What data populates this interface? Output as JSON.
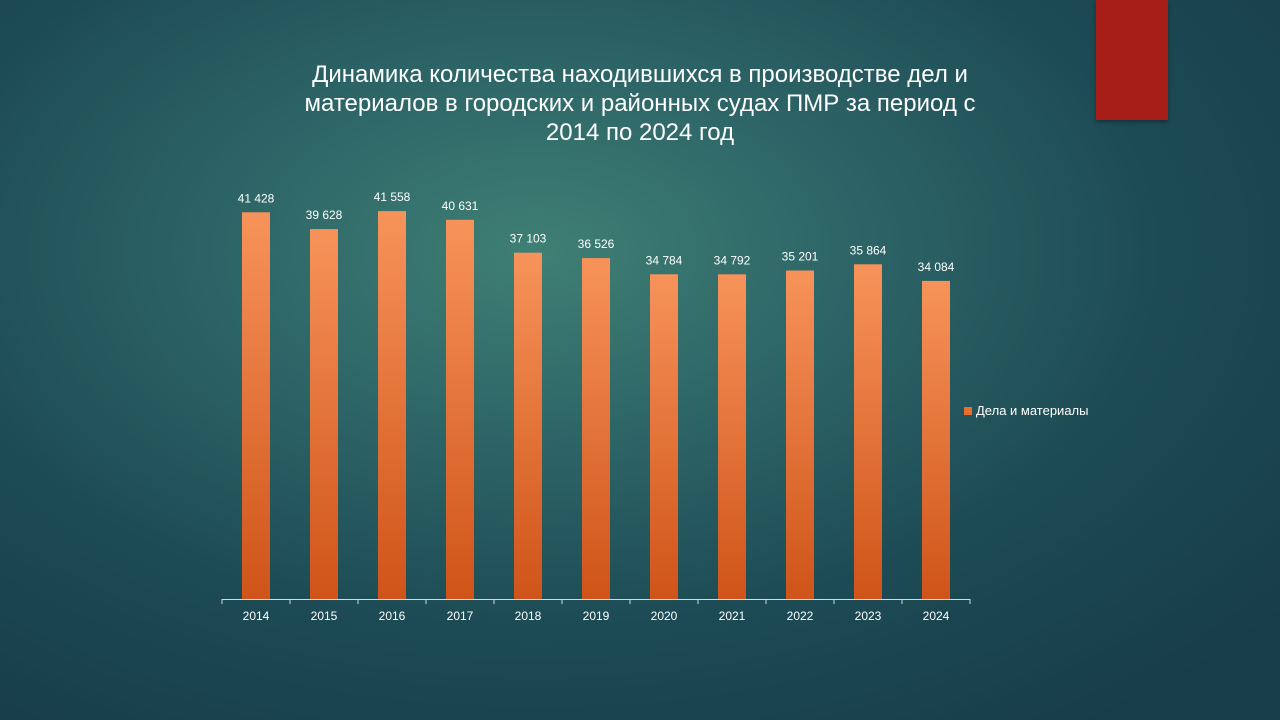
{
  "slide": {
    "title_lines": [
      "Динамика количества находившихся в производстве дел и",
      "материалов в городских и районных судах ПМР за период с",
      "2014 по 2024 год"
    ],
    "accent_color": "#a71d18"
  },
  "chart_data": {
    "type": "bar",
    "title": "Динамика количества находившихся в производстве дел и материалов в городских и районных судах ПМР за период с 2014 по 2024 год",
    "categories": [
      "2014",
      "2015",
      "2016",
      "2017",
      "2018",
      "2019",
      "2020",
      "2021",
      "2022",
      "2023",
      "2024"
    ],
    "series": [
      {
        "name": "Дела и материалы",
        "values": [
          41428,
          39628,
          41558,
          40631,
          37103,
          36526,
          34784,
          34792,
          35201,
          35864,
          34084
        ],
        "labels": [
          "41 428",
          "39 628",
          "41 558",
          "40 631",
          "37 103",
          "36 526",
          "34 784",
          "34 792",
          "35 201",
          "35 864",
          "34 084"
        ],
        "color": "#e8702f"
      }
    ],
    "xlabel": "",
    "ylabel": "",
    "ylim": [
      0,
      45000
    ],
    "grid": false,
    "y_axis_visible": false,
    "legend_position": "right"
  }
}
